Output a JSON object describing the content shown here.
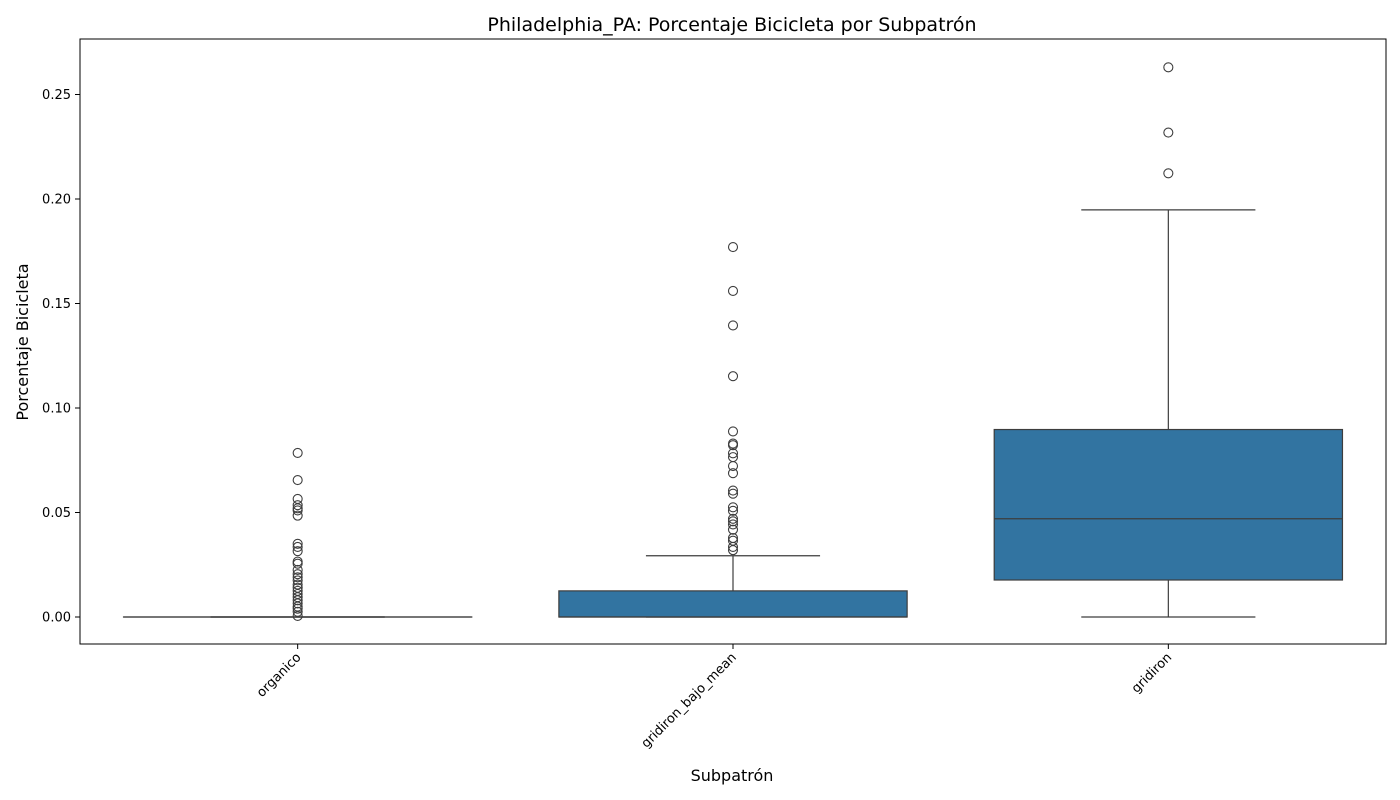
{
  "chart_data": {
    "type": "box",
    "title": "Philadelphia_PA: Porcentaje Bicicleta por Subpatrón",
    "xlabel": "Subpatrón",
    "ylabel": "Porcentaje Bicicleta",
    "ylim": [
      -0.013,
      0.276
    ],
    "yticks": [
      0.0,
      0.05,
      0.1,
      0.15,
      0.2,
      0.25
    ],
    "ytick_labels": [
      "0.00",
      "0.05",
      "0.10",
      "0.15",
      "0.20",
      "0.25"
    ],
    "categories": [
      "organico",
      "gridiron_bajo_mean",
      "gridiron"
    ],
    "grid": false,
    "colors": {
      "box_fill": "#3274a1",
      "line": "#3d3d3d"
    },
    "boxes": [
      {
        "category": "organico",
        "q1": 0.0,
        "median": 0.0,
        "q3": 0.0,
        "whisker_low": 0.0,
        "whisker_high": 0.0,
        "outliers": [
          0.0785,
          0.0655,
          0.0565,
          0.0535,
          0.052,
          0.051,
          0.0485,
          0.035,
          0.0335,
          0.0315,
          0.0265,
          0.0255,
          0.0225,
          0.0205,
          0.019,
          0.0175,
          0.0155,
          0.014,
          0.0125,
          0.011,
          0.0095,
          0.008,
          0.0065,
          0.005,
          0.004,
          0.0025,
          0.0005
        ]
      },
      {
        "category": "gridiron_bajo_mean",
        "q1": 0.0,
        "median": 0.0,
        "q3": 0.0125,
        "whisker_low": 0.0,
        "whisker_high": 0.0293,
        "outliers": [
          0.177,
          0.156,
          0.1395,
          0.1152,
          0.0888,
          0.083,
          0.0822,
          0.0783,
          0.0765,
          0.0722,
          0.0688,
          0.0605,
          0.059,
          0.0525,
          0.0508,
          0.047,
          0.0458,
          0.0443,
          0.0418,
          0.0378,
          0.0365,
          0.0335,
          0.032
        ]
      },
      {
        "category": "gridiron",
        "q1": 0.0177,
        "median": 0.047,
        "q3": 0.0897,
        "whisker_low": 0.0,
        "whisker_high": 0.1948,
        "outliers": [
          0.263,
          0.2318,
          0.2123
        ]
      }
    ]
  }
}
